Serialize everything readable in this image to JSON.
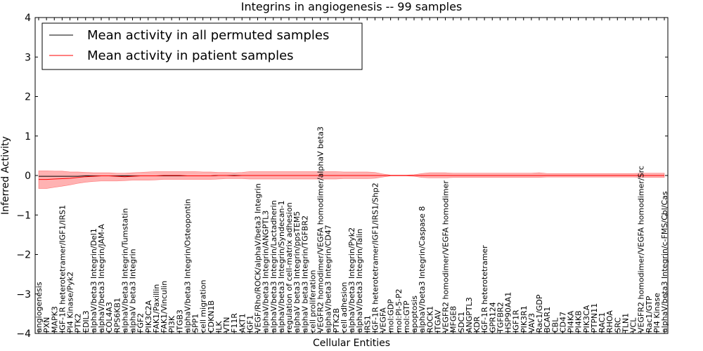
{
  "chart_data": {
    "type": "line",
    "title": "Integrins in angiogenesis -- 99 samples",
    "xlabel": "Cellular Entities",
    "ylabel": "Inferred Activity",
    "ylim": [
      -4,
      4
    ],
    "yticks": [
      -4,
      -3,
      -2,
      -1,
      0,
      1,
      2,
      3,
      4
    ],
    "grid": false,
    "legend_position": "top-left",
    "colors": {
      "permuted": "#000000",
      "patient": "#ff0000",
      "band": "#ff0000",
      "band_alpha": 0.3
    },
    "categories": [
      "angiogenesis",
      "PXN",
      "MAPK3",
      "IGF-1R heterotetramer/IGF1/IRS1",
      "PI4 Kinase/Pyk2",
      "PTK2",
      "EDIL3",
      "alphaV/beta3 Integrin/Del1",
      "alphaV/beta3 Integrin/JAM-A",
      "COL4A3",
      "RPS6KB1",
      "alphaV/beta3 Integrin/Tumstatin",
      "alphaV beta3 Integrin",
      "FGF2",
      "PIK3C2A",
      "FAK1/Paxillin",
      "FAK1/Vinculin",
      "PI3K",
      "ITGB3",
      "alphaV/beta3 Integrin/Osteopontin",
      "SPP1",
      "cell migration",
      "CDKN1B",
      "ILK",
      "VTN",
      "F11R",
      "AKT1",
      "IGF1",
      "VEGF/Rho/ROCK/alphaV/beta3 Integrin",
      "alphaV/beta3 Integrin/ANGPTL3",
      "alphaV/beta3 Integrin/Lactadherin",
      "alphaV/beta3 Integrin/Syndecan-1",
      "regulation of cell-matrix adhesion",
      "alphaV beta3 Integrin/ppsTEM5",
      "alphaV beta3 Integrin/TGFBR2",
      "cell proliferation",
      "VEGFR2 homodimer/VEGFA homodimer/alphaV beta3",
      "alphaV/beta3 Integrin/CD47",
      "PTK2B",
      "cell adhesion",
      "alphaV/beta3 Integrin/Pyk2",
      "alphaV/beta3 Integrin/Talin",
      "IRS1",
      "IGF-1R heterotetramer/IGF1/IRS1/Shp2",
      "VEGFA",
      "mol:GDP",
      "mol:PI-5-P2",
      "mol:GTP",
      "apoptosis",
      "alphaV/beta3 Integrin/Caspase 8",
      "ROCK1",
      "ITGAV",
      "VEGFR2 homodimer/VEGFA homodimer",
      "MFGE8",
      "SDC1",
      "ANGPTL3",
      "KDR",
      "IGF-1R heterotetramer",
      "GPR124",
      "TGFBR2",
      "HSP90AA1",
      "IGF1R",
      "PIK3R1",
      "VAV3",
      "Rac1/GDP",
      "BCAR1",
      "CBL",
      "CD47",
      "PI4KA",
      "PI4KB",
      "PIK3CA",
      "PTPN11",
      "RAC1",
      "RHOA",
      "SRC",
      "TLN1",
      "VCL",
      "VEGFR2 homodimer/VEGFA homodimer/Src",
      "Rac1/GTP",
      "PI4 Kinase",
      "alphaV/beta3 Integrin/c-FMS/Cbl/Cas"
    ],
    "series": [
      {
        "name": "Mean activity in all permuted samples",
        "color": "#000000",
        "values": [
          -0.02,
          -0.02,
          -0.02,
          -0.02,
          -0.02,
          -0.02,
          -0.01,
          -0.01,
          -0.01,
          -0.01,
          -0.01,
          -0.01,
          -0.01,
          -0.01,
          -0.01,
          -0.01,
          -0.01,
          -0.01,
          -0.01,
          -0.01,
          -0.01,
          -0.01,
          -0.01,
          0,
          0,
          0,
          0,
          0,
          0,
          0,
          0,
          0,
          0,
          0,
          0,
          0,
          0,
          0,
          0,
          0,
          0,
          0,
          0,
          0,
          0,
          0,
          0,
          0,
          0,
          0,
          0,
          0,
          0,
          0,
          0,
          0,
          0,
          0,
          0,
          0,
          0,
          0,
          0,
          0,
          0,
          0,
          0,
          0,
          0,
          0,
          0,
          0,
          0,
          0,
          0,
          0,
          0,
          0,
          0,
          0,
          0
        ]
      },
      {
        "name": "Mean activity in patient samples",
        "color": "#ff0000",
        "values": [
          -0.1,
          -0.1,
          -0.09,
          -0.08,
          -0.07,
          -0.05,
          -0.03,
          -0.02,
          -0.01,
          -0.01,
          -0.02,
          -0.03,
          -0.02,
          -0.01,
          -0.01,
          -0.01,
          0,
          0,
          0,
          -0.01,
          -0.01,
          -0.01,
          -0.01,
          0,
          0,
          -0.01,
          0,
          0,
          0,
          0,
          0,
          0,
          0,
          0,
          0,
          0,
          0,
          0,
          0,
          0,
          0,
          0,
          0,
          0,
          0,
          0,
          0,
          0,
          0,
          0,
          0,
          0,
          0,
          0,
          0,
          0,
          0,
          0,
          0,
          0,
          0,
          0,
          0,
          0,
          0,
          0,
          0,
          0,
          0,
          0,
          0,
          0,
          0,
          0,
          0,
          0,
          0,
          0,
          0,
          0,
          0
        ],
        "upper": [
          0.12,
          0.12,
          0.11,
          0.11,
          0.09,
          0.09,
          0.08,
          0.07,
          0.07,
          0.07,
          0.06,
          0.06,
          0.07,
          0.08,
          0.09,
          0.1,
          0.1,
          0.1,
          0.1,
          0.1,
          0.1,
          0.09,
          0.09,
          0.08,
          0.08,
          0.07,
          0.08,
          0.1,
          0.1,
          0.1,
          0.1,
          0.1,
          0.1,
          0.1,
          0.1,
          0.1,
          0.1,
          0.1,
          0.1,
          0.09,
          0.09,
          0.09,
          0.09,
          0.08,
          0.04,
          0.01,
          0.01,
          0.01,
          0.02,
          0.05,
          0.07,
          0.07,
          0.07,
          0.06,
          0.06,
          0.06,
          0.06,
          0.06,
          0.06,
          0.06,
          0.06,
          0.06,
          0.06,
          0.06,
          0.07,
          0.05,
          0.05,
          0.05,
          0.05,
          0.05,
          0.05,
          0.05,
          0.05,
          0.05,
          0.05,
          0.05,
          0.05,
          0.06,
          0.06,
          0.06,
          0.06
        ],
        "lower": [
          -0.33,
          -0.33,
          -0.3,
          -0.27,
          -0.24,
          -0.2,
          -0.17,
          -0.15,
          -0.14,
          -0.14,
          -0.14,
          -0.13,
          -0.12,
          -0.12,
          -0.12,
          -0.11,
          -0.1,
          -0.1,
          -0.1,
          -0.1,
          -0.1,
          -0.1,
          -0.1,
          -0.09,
          -0.08,
          -0.08,
          -0.08,
          -0.09,
          -0.09,
          -0.09,
          -0.09,
          -0.09,
          -0.09,
          -0.09,
          -0.09,
          -0.09,
          -0.09,
          -0.09,
          -0.09,
          -0.08,
          -0.08,
          -0.08,
          -0.08,
          -0.07,
          -0.04,
          -0.01,
          -0.01,
          -0.01,
          -0.02,
          -0.05,
          -0.06,
          -0.06,
          -0.06,
          -0.05,
          -0.05,
          -0.05,
          -0.05,
          -0.05,
          -0.05,
          -0.05,
          -0.05,
          -0.05,
          -0.05,
          -0.05,
          -0.05,
          -0.04,
          -0.04,
          -0.04,
          -0.04,
          -0.04,
          -0.04,
          -0.04,
          -0.04,
          -0.04,
          -0.04,
          -0.04,
          -0.04,
          -0.05,
          -0.05,
          -0.05,
          -0.05
        ]
      }
    ]
  }
}
